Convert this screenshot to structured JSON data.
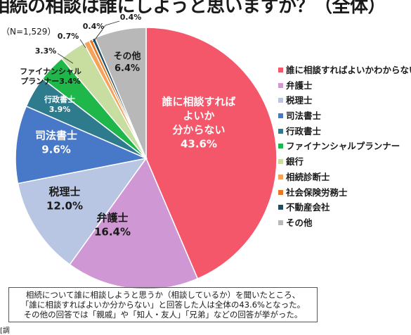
{
  "title": "相続の相談は誰にしようと思いますか？（全体）",
  "sample_size": "（N=1,529）",
  "chart_data": {
    "type": "pie",
    "title": "相続の相談は誰にしようと思いますか？（全体）",
    "slices": [
      {
        "name": "誰に相談すればよいかわからない",
        "value": 43.6,
        "color": "#f4566a",
        "label_lines": [
          "誰に相談すれば",
          "よいか",
          "分からない",
          "43.6%"
        ]
      },
      {
        "name": "弁護士",
        "value": 16.4,
        "color": "#cf97d4",
        "label_lines": [
          "弁護士",
          "16.4%"
        ]
      },
      {
        "name": "税理士",
        "value": 12.0,
        "color": "#b8c6e4",
        "label_lines": [
          "税理士",
          "12.0%"
        ]
      },
      {
        "name": "司法書士",
        "value": 9.6,
        "color": "#4878c8",
        "label_lines": [
          "司法書士",
          "9.6%"
        ]
      },
      {
        "name": "行政書士",
        "value": 3.9,
        "color": "#2e7b8e",
        "label_lines": [
          "行政書士",
          "3.9%"
        ]
      },
      {
        "name": "ファイナンシャルプランナー",
        "value": 3.4,
        "color": "#1fb64a",
        "label_lines": [
          "ファイナンシャル",
          "プランナー3.4%"
        ]
      },
      {
        "name": "銀行",
        "value": 3.3,
        "color": "#c8dea0",
        "label_lines": [
          "3.3%"
        ]
      },
      {
        "name": "相続診断士",
        "value": 0.7,
        "color": "#f5a25a",
        "label_lines": [
          "0.7%"
        ]
      },
      {
        "name": "社会保険労務士",
        "value": 0.4,
        "color": "#e87722",
        "label_lines": [
          "0.4%"
        ]
      },
      {
        "name": "不動産会社",
        "value": 0.4,
        "color": "#1d4e63",
        "label_lines": [
          "0.4%"
        ]
      },
      {
        "name": "その他",
        "value": 6.4,
        "color": "#b8b8b8",
        "label_lines": [
          "その他",
          "6.4%"
        ]
      }
    ],
    "legend": [
      "誰に相談すればよいかわからない",
      "弁護士",
      "税理士",
      "司法書士",
      "行政書士",
      "ファイナンシャルプランナー",
      "銀行",
      "相続診断士",
      "社会保険労務士",
      "不動産会社",
      "その他"
    ],
    "legend_position": "right"
  },
  "note_lines": [
    "相続について誰に相談しようと思うか（相談しているか）を聞いたところ、",
    "「誰に相談すればよいか分からない」と回答した人は全体の43.6%となった。",
    "その他の回答では「親戚」や「知人・友人」「兄弟」などの回答が挙がった。"
  ],
  "footer": "[調"
}
